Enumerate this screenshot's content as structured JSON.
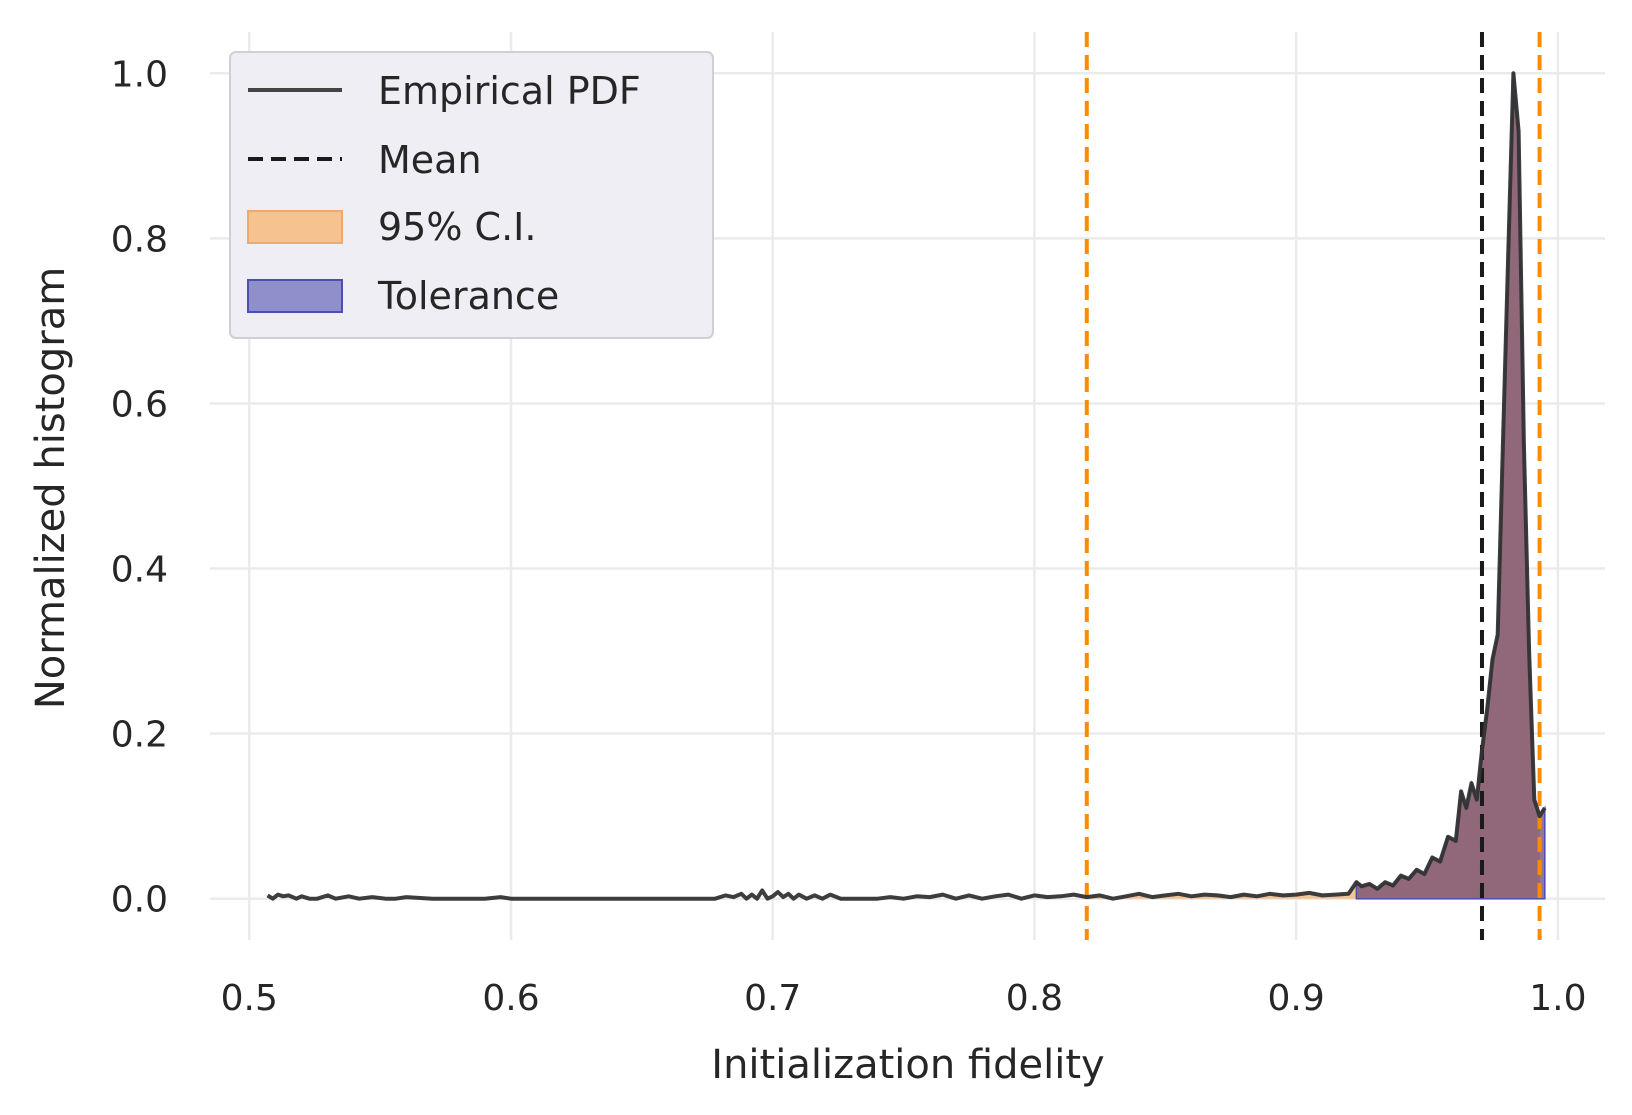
{
  "chart_data": {
    "type": "line",
    "title": "",
    "xlabel": "Initialization fidelity",
    "ylabel": "Normalized histogram",
    "xlim": [
      0.485,
      1.018
    ],
    "ylim": [
      -0.05,
      1.05
    ],
    "grid": true,
    "legend_position": "top-left",
    "x_ticks": [
      0.5,
      0.6,
      0.7,
      0.8,
      0.9,
      1.0
    ],
    "x_tick_labels": [
      "0.5",
      "0.6",
      "0.7",
      "0.8",
      "0.9",
      "1.0"
    ],
    "y_ticks": [
      0.0,
      0.2,
      0.4,
      0.6,
      0.8,
      1.0
    ],
    "y_tick_labels": [
      "0.0",
      "0.2",
      "0.4",
      "0.6",
      "0.8",
      "1.0"
    ],
    "legend": [
      {
        "label": "Empirical PDF",
        "kind": "line",
        "color": "#333333"
      },
      {
        "label": "Mean",
        "kind": "dashed",
        "color": "#1a1a1a"
      },
      {
        "label": "95% C.I.",
        "kind": "patch",
        "color": "#f5c290",
        "edge": "#f5a766"
      },
      {
        "label": "Tolerance",
        "kind": "patch",
        "color": "#8f8fcc",
        "edge": "#4d4db3"
      }
    ],
    "colors": {
      "pdf_line": "#333333",
      "mean_line": "#1a1a1a",
      "ci_line": "#ff8c00",
      "ci_fill": "#f5b980",
      "tolerance_fill": "#6f4a72",
      "grid": "#ebebeb"
    },
    "mean": 0.971,
    "ci": [
      0.82,
      0.993
    ],
    "tolerance_start": 0.923,
    "series": [
      {
        "name": "Empirical PDF",
        "x": [
          0.507,
          0.509,
          0.511,
          0.513,
          0.515,
          0.518,
          0.52,
          0.523,
          0.526,
          0.53,
          0.533,
          0.538,
          0.542,
          0.547,
          0.552,
          0.556,
          0.56,
          0.57,
          0.58,
          0.59,
          0.596,
          0.6,
          0.61,
          0.62,
          0.63,
          0.64,
          0.65,
          0.66,
          0.67,
          0.678,
          0.682,
          0.685,
          0.688,
          0.69,
          0.692,
          0.694,
          0.696,
          0.698,
          0.7,
          0.702,
          0.704,
          0.706,
          0.708,
          0.71,
          0.713,
          0.716,
          0.719,
          0.722,
          0.726,
          0.73,
          0.735,
          0.74,
          0.745,
          0.75,
          0.755,
          0.76,
          0.765,
          0.77,
          0.775,
          0.78,
          0.785,
          0.79,
          0.795,
          0.8,
          0.805,
          0.81,
          0.815,
          0.82,
          0.825,
          0.83,
          0.835,
          0.84,
          0.845,
          0.85,
          0.855,
          0.86,
          0.865,
          0.87,
          0.875,
          0.88,
          0.885,
          0.89,
          0.895,
          0.9,
          0.905,
          0.91,
          0.915,
          0.92,
          0.923,
          0.925,
          0.928,
          0.931,
          0.934,
          0.937,
          0.94,
          0.943,
          0.946,
          0.949,
          0.952,
          0.955,
          0.958,
          0.961,
          0.963,
          0.965,
          0.967,
          0.969,
          0.971,
          0.973,
          0.975,
          0.977,
          0.979,
          0.981,
          0.983,
          0.985,
          0.987,
          0.989,
          0.991,
          0.993,
          0.995
        ],
        "values": [
          0.004,
          0.0,
          0.005,
          0.003,
          0.004,
          0.0,
          0.003,
          0.0,
          0.0,
          0.004,
          0.0,
          0.003,
          0.0,
          0.002,
          0.0,
          0.0,
          0.002,
          0.0,
          0.0,
          0.0,
          0.002,
          0.0,
          0.0,
          0.0,
          0.0,
          0.0,
          0.0,
          0.0,
          0.0,
          0.0,
          0.004,
          0.002,
          0.006,
          0.0,
          0.005,
          0.0,
          0.01,
          0.0,
          0.003,
          0.008,
          0.002,
          0.006,
          0.0,
          0.005,
          0.0,
          0.004,
          0.0,
          0.005,
          0.0,
          0.0,
          0.0,
          0.0,
          0.002,
          0.0,
          0.003,
          0.002,
          0.005,
          0.0,
          0.004,
          0.0,
          0.003,
          0.005,
          0.0,
          0.004,
          0.002,
          0.003,
          0.005,
          0.002,
          0.004,
          0.0,
          0.003,
          0.006,
          0.002,
          0.004,
          0.006,
          0.003,
          0.005,
          0.004,
          0.002,
          0.005,
          0.003,
          0.006,
          0.004,
          0.005,
          0.007,
          0.004,
          0.005,
          0.006,
          0.02,
          0.015,
          0.018,
          0.012,
          0.02,
          0.016,
          0.028,
          0.024,
          0.035,
          0.03,
          0.05,
          0.045,
          0.075,
          0.07,
          0.13,
          0.11,
          0.14,
          0.12,
          0.18,
          0.23,
          0.29,
          0.32,
          0.55,
          0.78,
          1.0,
          0.93,
          0.55,
          0.3,
          0.12,
          0.1,
          0.11
        ]
      }
    ]
  }
}
